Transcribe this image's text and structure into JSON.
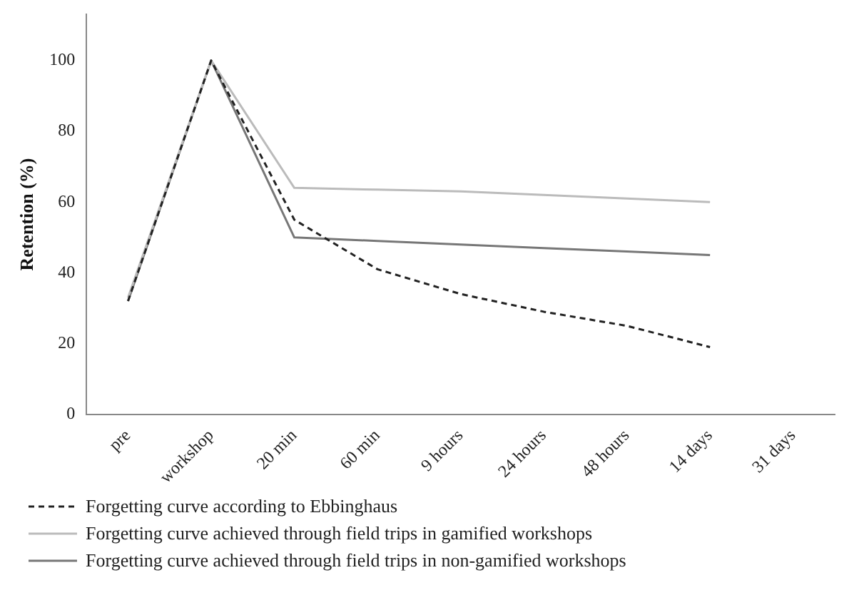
{
  "chart_data": {
    "type": "line",
    "ylabel": "Retention (%)",
    "categories": [
      "pre",
      "workshop",
      "20 min",
      "60 min",
      "9 hours",
      "24 hours",
      "48 hours",
      "14 days",
      "31 days"
    ],
    "series": [
      {
        "name": "Forgetting curve according to Ebbinghaus",
        "color": "#222222",
        "line_style": "dashed",
        "values": [
          32,
          100,
          55,
          41,
          34,
          29,
          25,
          19,
          null
        ]
      },
      {
        "name": "Forgetting curve achieved through field trips in gamified workshops",
        "color": "#bbbbbb",
        "line_style": "solid",
        "values": [
          33,
          100,
          64,
          63.5,
          63,
          62,
          61,
          60,
          null
        ]
      },
      {
        "name": "Forgetting curve achieved through field trips in non-gamified workshops",
        "color": "#777777",
        "line_style": "solid",
        "values": [
          32,
          100,
          50,
          49,
          48,
          47,
          46,
          45,
          null
        ]
      }
    ],
    "ylim": [
      0,
      113
    ],
    "yticks": [
      0,
      20,
      40,
      60,
      80,
      100
    ],
    "grid": false,
    "legend": "bottom",
    "marker": "none"
  }
}
